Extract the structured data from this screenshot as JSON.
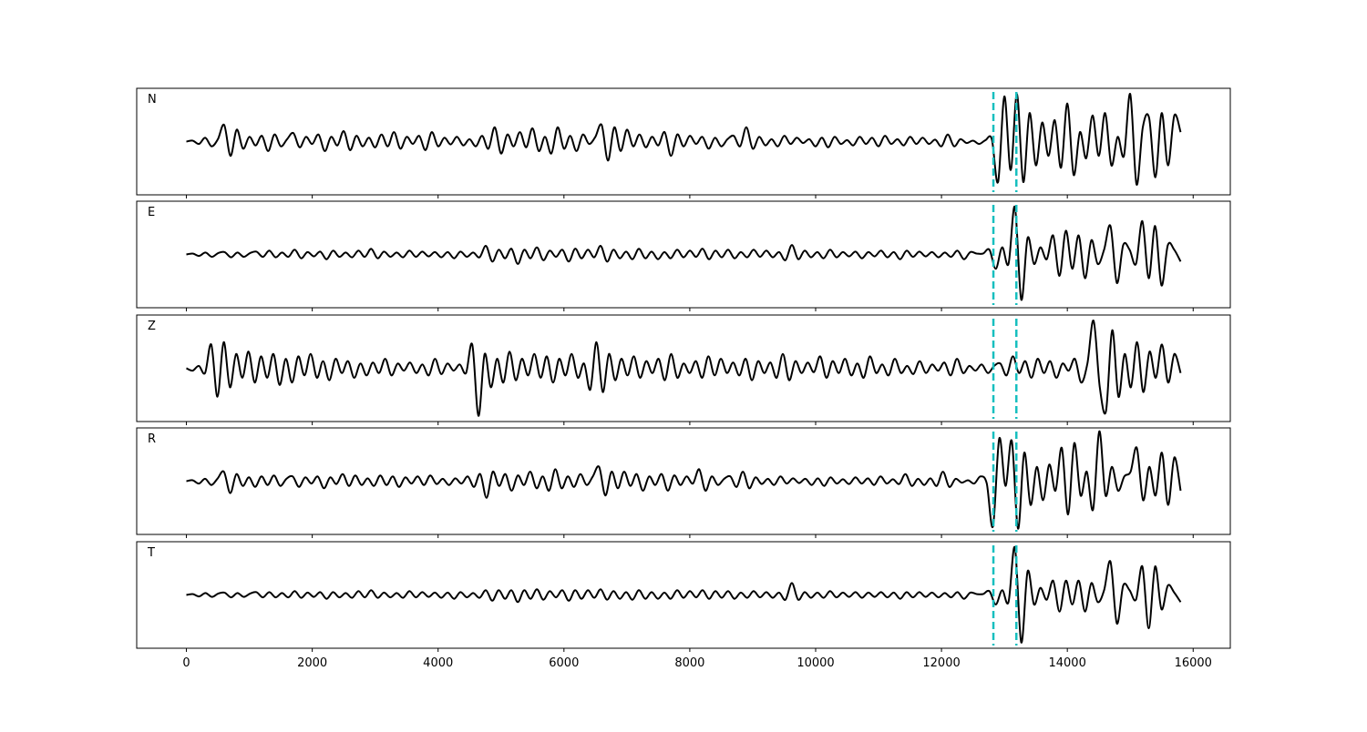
{
  "chart_data": {
    "type": "line",
    "x_range": [
      0,
      15800
    ],
    "xlim": [
      -790,
      16590
    ],
    "ylim": [
      -1.12,
      1.12
    ],
    "xticks": [
      0,
      2000,
      4000,
      6000,
      8000,
      10000,
      12000,
      14000,
      16000
    ],
    "xtick_labels": [
      "0",
      "2000",
      "4000",
      "6000",
      "8000",
      "10000",
      "12000",
      "14000",
      "16000"
    ],
    "line_color": "#000000",
    "marker_color": "#17bfbf",
    "vertical_markers": [
      12825,
      13190
    ],
    "panels": [
      {
        "label": "N",
        "values": [
          0,
          0.02,
          -0.05,
          0.08,
          -0.1,
          0.05,
          0.35,
          -0.3,
          0.25,
          -0.15,
          0.1,
          -0.08,
          0.12,
          -0.2,
          0.15,
          -0.1,
          0.05,
          0.18,
          -0.12,
          0.1,
          -0.05,
          0.15,
          -0.2,
          0.1,
          -0.08,
          0.22,
          -0.18,
          0.12,
          -0.1,
          0.08,
          -0.12,
          0.15,
          -0.1,
          0.2,
          -0.15,
          0.1,
          -0.05,
          0.12,
          -0.18,
          0.2,
          -0.1,
          0.08,
          -0.06,
          0.1,
          -0.08,
          0.05,
          -0.1,
          0.12,
          -0.15,
          0.3,
          -0.25,
          0.15,
          -0.1,
          0.2,
          -0.12,
          0.28,
          -0.2,
          0.1,
          -0.25,
          0.3,
          -0.15,
          0.12,
          -0.2,
          0.15,
          -0.05,
          0.1,
          0.35,
          -0.4,
          0.3,
          -0.2,
          0.25,
          -0.1,
          0.15,
          -0.12,
          0.1,
          -0.08,
          0.2,
          -0.3,
          0.15,
          -0.1,
          0.12,
          -0.05,
          0.1,
          -0.15,
          0.08,
          -0.1,
          0.05,
          0.12,
          -0.1,
          0.3,
          -0.15,
          0.1,
          -0.08,
          0.05,
          -0.1,
          0.12,
          -0.05,
          0.08,
          -0.03,
          0.05,
          -0.1,
          0.08,
          -0.12,
          0.1,
          -0.05,
          0.03,
          -0.08,
          0.1,
          -0.05,
          0.08,
          -0.1,
          0.12,
          -0.05,
          0.05,
          -0.08,
          0.1,
          -0.05,
          0.08,
          -0.05,
          0.04,
          -0.1,
          0.15,
          -0.1,
          0.05,
          -0.03,
          0.02,
          -0.05,
          0.03,
          0.05,
          -0.85,
          0.95,
          -0.6,
          1.0,
          -0.85,
          0.6,
          -0.5,
          0.4,
          -0.3,
          0.45,
          -0.55,
          0.8,
          -0.7,
          0.2,
          -0.35,
          0.55,
          -0.3,
          0.6,
          -0.5,
          0.1,
          -0.3,
          1.0,
          -0.9,
          0.3,
          0.5,
          -0.75,
          0.6,
          -0.5,
          0.55,
          0.2
        ]
      },
      {
        "label": "E",
        "values": [
          0,
          0.02,
          -0.03,
          0.04,
          -0.05,
          0.03,
          0.05,
          -0.06,
          0.04,
          -0.05,
          0.03,
          0.06,
          -0.05,
          0.08,
          -0.06,
          0.04,
          -0.05,
          0.1,
          -0.08,
          0.05,
          -0.04,
          0.06,
          -0.1,
          0.08,
          -0.05,
          0.04,
          -0.06,
          0.08,
          -0.05,
          0.12,
          -0.08,
          0.06,
          -0.05,
          0.04,
          -0.06,
          0.08,
          -0.05,
          0.06,
          -0.04,
          0.05,
          -0.06,
          0.05,
          -0.08,
          0.06,
          -0.05,
          0.04,
          -0.06,
          0.18,
          -0.15,
          0.1,
          -0.08,
          0.12,
          -0.2,
          0.1,
          -0.08,
          0.15,
          -0.12,
          0.08,
          -0.05,
          0.1,
          -0.15,
          0.12,
          -0.08,
          0.1,
          -0.06,
          0.18,
          -0.15,
          0.1,
          -0.08,
          0.06,
          -0.1,
          0.12,
          -0.08,
          0.06,
          -0.1,
          0.05,
          -0.08,
          0.1,
          -0.06,
          0.08,
          -0.05,
          0.12,
          -0.1,
          0.08,
          -0.06,
          0.1,
          -0.08,
          0.05,
          -0.06,
          0.1,
          -0.05,
          0.08,
          -0.06,
          0.05,
          -0.12,
          0.2,
          -0.1,
          0.08,
          -0.06,
          0.05,
          -0.08,
          0.1,
          -0.06,
          0.05,
          -0.04,
          0.06,
          -0.08,
          0.05,
          -0.04,
          0.08,
          -0.06,
          0.05,
          -0.1,
          0.08,
          -0.05,
          0.06,
          -0.04,
          0.05,
          -0.06,
          0.04,
          -0.05,
          0.08,
          -0.1,
          0.05,
          0.02,
          0.02,
          0.1,
          -0.3,
          0.15,
          -0.2,
          1.0,
          -0.95,
          0.35,
          -0.2,
          0.15,
          -0.1,
          0.4,
          -0.45,
          0.5,
          -0.3,
          0.4,
          -0.5,
          0.3,
          -0.2,
          0.1,
          0.6,
          -0.6,
          0.2,
          0.1,
          -0.2,
          0.7,
          -0.5,
          0.6,
          -0.65,
          0.2,
          0.1,
          -0.15
        ]
      },
      {
        "label": "Z",
        "values": [
          0,
          -0.05,
          0.05,
          -0.1,
          0.5,
          -0.6,
          0.55,
          -0.4,
          0.3,
          -0.2,
          0.35,
          -0.3,
          0.25,
          -0.2,
          0.3,
          -0.35,
          0.2,
          -0.3,
          0.25,
          -0.15,
          0.3,
          -0.2,
          0.15,
          -0.25,
          0.2,
          -0.1,
          0.15,
          -0.2,
          0.1,
          -0.15,
          0.12,
          -0.1,
          0.2,
          -0.15,
          0.1,
          -0.05,
          0.12,
          -0.1,
          0.08,
          -0.15,
          0.2,
          -0.12,
          0.1,
          -0.05,
          0.08,
          -0.1,
          0.5,
          -1.0,
          0.3,
          -0.4,
          0.2,
          -0.3,
          0.35,
          -0.25,
          0.2,
          -0.15,
          0.3,
          -0.2,
          0.25,
          -0.3,
          0.2,
          -0.15,
          0.3,
          -0.2,
          0.1,
          -0.45,
          0.55,
          -0.5,
          0.3,
          -0.25,
          0.2,
          -0.15,
          0.25,
          -0.2,
          0.15,
          -0.1,
          0.2,
          -0.25,
          0.3,
          -0.2,
          0.1,
          -0.1,
          0.15,
          -0.2,
          0.25,
          -0.15,
          0.2,
          -0.1,
          0.12,
          -0.15,
          0.2,
          -0.25,
          0.15,
          -0.1,
          0.12,
          -0.2,
          0.3,
          -0.25,
          0.15,
          -0.1,
          0.12,
          -0.08,
          0.25,
          -0.2,
          0.15,
          -0.1,
          0.2,
          -0.15,
          0.1,
          -0.2,
          0.25,
          -0.1,
          0.08,
          -0.15,
          0.2,
          -0.1,
          0.05,
          -0.12,
          0.15,
          -0.1,
          0.08,
          -0.05,
          0.12,
          -0.15,
          0.2,
          -0.1,
          0.05,
          -0.05,
          0.08,
          -0.1,
          0.05,
          0.1,
          -0.15,
          0.25,
          -0.1,
          0.15,
          -0.2,
          0.2,
          -0.1,
          0.15,
          -0.2,
          0.1,
          -0.05,
          0.2,
          -0.3,
          0.1,
          1.0,
          -0.4,
          -0.9,
          0.8,
          -0.6,
          0.3,
          -0.4,
          0.55,
          -0.5,
          0.35,
          -0.2,
          0.5,
          -0.3,
          0.3,
          -0.1
        ]
      },
      {
        "label": "R",
        "values": [
          0,
          0.02,
          -0.05,
          0.05,
          -0.08,
          0.06,
          0.2,
          -0.25,
          0.15,
          -0.1,
          0.08,
          -0.12,
          0.1,
          -0.08,
          0.12,
          -0.1,
          0.05,
          0.1,
          -0.12,
          0.08,
          -0.05,
          0.1,
          -0.15,
          0.08,
          -0.06,
          0.15,
          -0.1,
          0.12,
          -0.08,
          0.06,
          -0.1,
          0.12,
          -0.08,
          0.1,
          -0.12,
          0.08,
          -0.05,
          0.1,
          -0.08,
          0.12,
          -0.06,
          0.05,
          -0.08,
          0.06,
          -0.05,
          0.1,
          -0.12,
          0.15,
          -0.35,
          0.2,
          -0.1,
          0.15,
          -0.2,
          0.12,
          -0.08,
          0.2,
          -0.15,
          0.1,
          -0.2,
          0.25,
          -0.15,
          0.1,
          -0.12,
          0.15,
          -0.08,
          0.1,
          0.3,
          -0.3,
          0.2,
          -0.15,
          0.2,
          -0.1,
          0.15,
          -0.2,
          0.1,
          -0.08,
          0.15,
          -0.2,
          0.12,
          -0.08,
          0.1,
          -0.05,
          0.25,
          -0.2,
          0.1,
          -0.08,
          0.05,
          0.1,
          -0.12,
          0.2,
          -0.15,
          0.08,
          -0.06,
          0.05,
          -0.08,
          0.1,
          -0.05,
          0.06,
          -0.04,
          0.05,
          -0.08,
          0.06,
          -0.1,
          0.08,
          -0.05,
          0.04,
          -0.06,
          0.08,
          -0.05,
          0.06,
          -0.08,
          0.1,
          -0.05,
          0.04,
          -0.06,
          0.15,
          -0.1,
          0.05,
          -0.08,
          0.06,
          -0.1,
          0.2,
          -0.12,
          0.05,
          -0.03,
          0.02,
          -0.05,
          0.1,
          -0.05,
          -0.95,
          0.9,
          -0.1,
          0.85,
          -1.0,
          0.6,
          -0.5,
          0.3,
          -0.4,
          0.35,
          -0.2,
          0.7,
          -0.7,
          0.8,
          -0.3,
          0.2,
          -0.6,
          1.05,
          -0.3,
          0.3,
          -0.2,
          0.1,
          0.2,
          0.7,
          -0.4,
          0.3,
          -0.3,
          0.6,
          -0.5,
          0.5,
          -0.2
        ]
      },
      {
        "label": "T",
        "values": [
          0,
          0.02,
          -0.03,
          0.04,
          -0.04,
          0.03,
          0.05,
          -0.05,
          0.04,
          -0.04,
          0.03,
          0.06,
          -0.05,
          0.06,
          -0.05,
          0.04,
          -0.05,
          0.08,
          -0.06,
          0.05,
          -0.04,
          0.06,
          -0.08,
          0.06,
          -0.05,
          0.04,
          -0.06,
          0.08,
          -0.05,
          0.1,
          -0.06,
          0.05,
          -0.05,
          0.04,
          -0.06,
          0.08,
          -0.05,
          0.06,
          -0.04,
          0.05,
          -0.06,
          0.05,
          -0.08,
          0.06,
          -0.05,
          0.04,
          -0.06,
          0.1,
          -0.12,
          0.1,
          -0.08,
          0.1,
          -0.15,
          0.1,
          -0.08,
          0.12,
          -0.1,
          0.08,
          -0.05,
          0.1,
          -0.12,
          0.1,
          -0.08,
          0.1,
          -0.06,
          0.12,
          -0.1,
          0.08,
          -0.08,
          0.06,
          -0.1,
          0.1,
          -0.08,
          0.06,
          -0.08,
          0.05,
          -0.08,
          0.1,
          -0.06,
          0.08,
          -0.05,
          0.1,
          -0.08,
          0.08,
          -0.06,
          0.08,
          -0.08,
          0.05,
          -0.06,
          0.08,
          -0.05,
          0.06,
          -0.06,
          0.05,
          -0.1,
          0.25,
          -0.1,
          0.06,
          -0.06,
          0.05,
          -0.06,
          0.08,
          -0.05,
          0.05,
          -0.04,
          0.06,
          -0.06,
          0.05,
          -0.04,
          0.06,
          -0.05,
          0.05,
          -0.08,
          0.06,
          -0.05,
          0.06,
          -0.04,
          0.05,
          -0.05,
          0.04,
          -0.05,
          0.06,
          -0.08,
          0.05,
          0.02,
          0.02,
          0.08,
          -0.2,
          0.1,
          -0.15,
          1.0,
          -1.0,
          0.5,
          -0.2,
          0.15,
          -0.1,
          0.3,
          -0.35,
          0.3,
          -0.2,
          0.3,
          -0.35,
          0.25,
          -0.15,
          0.1,
          0.7,
          -0.6,
          0.2,
          0.1,
          -0.1,
          0.6,
          -0.7,
          0.6,
          -0.3,
          0.2,
          0.05,
          -0.15
        ]
      }
    ]
  }
}
